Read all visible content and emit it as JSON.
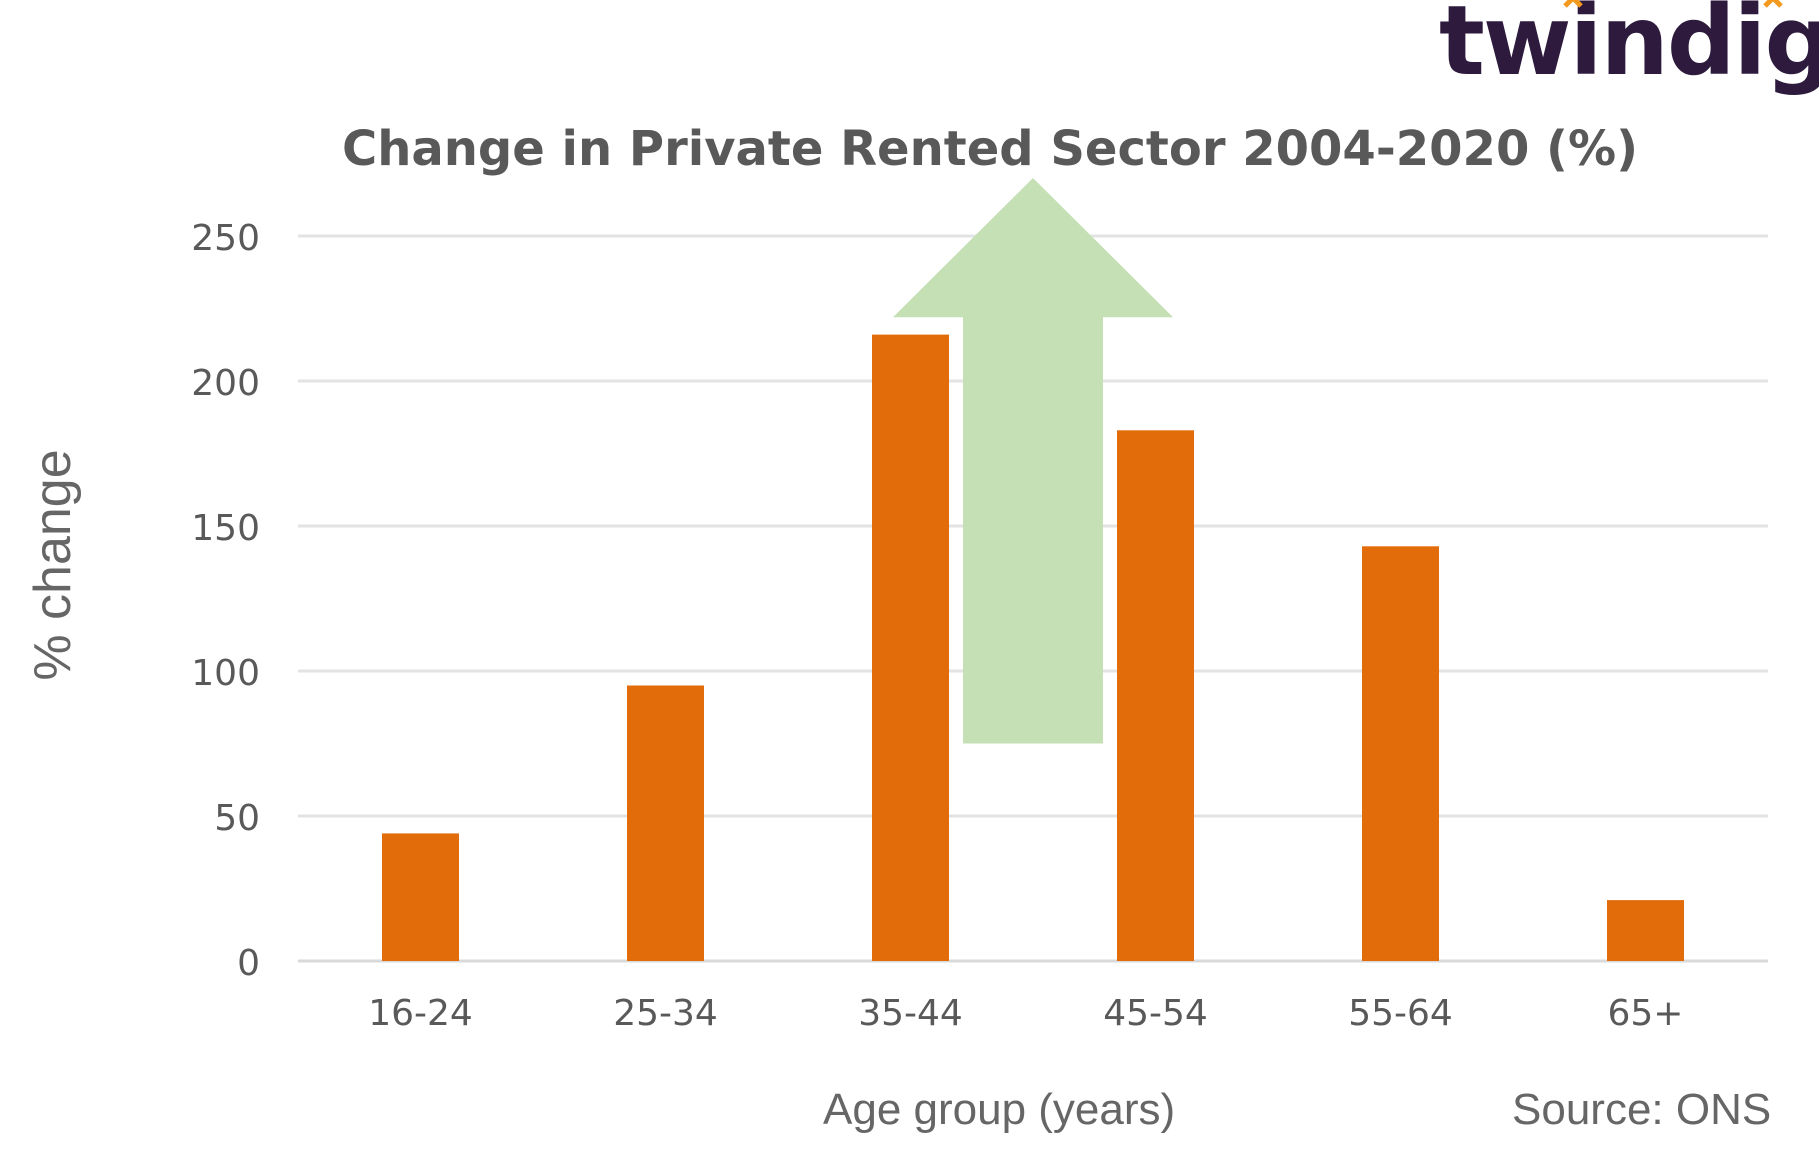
{
  "brand": {
    "logo_text": "twindig",
    "accent_color": "#f39a1e",
    "ink_color": "#2d1a3c"
  },
  "chart_data": {
    "type": "bar",
    "title": "Change in Private Rented Sector 2004-2020  (%)",
    "xlabel": "Age group (years)",
    "ylabel": "% change",
    "categories": [
      "16-24",
      "25-34",
      "35-44",
      "45-54",
      "55-64",
      "65+"
    ],
    "values": [
      44,
      95,
      216,
      183,
      143,
      21
    ],
    "ylim": [
      0,
      250
    ],
    "yticks": [
      0,
      50,
      100,
      150,
      200,
      250
    ],
    "grid": true,
    "bar_color": "#e36c0a",
    "arrow_color": "#c5e0b4",
    "arrow_range": [
      75,
      270
    ],
    "source": "Source: ONS"
  }
}
